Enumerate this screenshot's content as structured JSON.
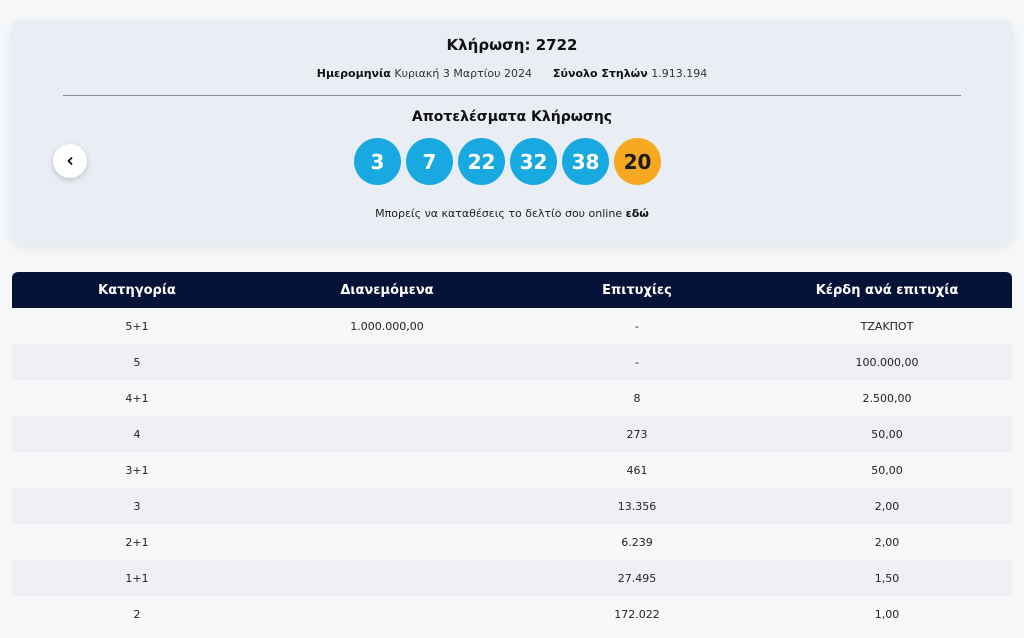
{
  "draw": {
    "title": "Κλήρωση: 2722",
    "date_label": "Ημερομηνία",
    "date_value": "Κυριακή 3 Μαρτίου 2024",
    "columns_label": "Σύνολο Στηλών",
    "columns_value": "1.913.194",
    "results_title": "Αποτελέσματα Κλήρωσης",
    "numbers": [
      "3",
      "7",
      "22",
      "32",
      "38"
    ],
    "bonus": "20",
    "online_text": "Μπορείς να καταθέσεις το δελτίο σου online",
    "online_link": "εδώ",
    "colors": {
      "ball": "#19a9e1",
      "bonus": "#f6a821"
    },
    "prev_icon": "chevron-left-icon"
  },
  "table": {
    "headers": [
      "Κατηγορία",
      "Διανεμόμενα",
      "Επιτυχίες",
      "Κέρδη ανά επιτυχία"
    ],
    "rows": [
      [
        "5+1",
        "1.000.000,00",
        "-",
        "ΤΖΑΚΠΟΤ"
      ],
      [
        "5",
        "",
        "-",
        "100.000,00"
      ],
      [
        "4+1",
        "",
        "8",
        "2.500,00"
      ],
      [
        "4",
        "",
        "273",
        "50,00"
      ],
      [
        "3+1",
        "",
        "461",
        "50,00"
      ],
      [
        "3",
        "",
        "13.356",
        "2,00"
      ],
      [
        "2+1",
        "",
        "6.239",
        "2,00"
      ],
      [
        "1+1",
        "",
        "27.495",
        "1,50"
      ],
      [
        "2",
        "",
        "172.022",
        "1,00"
      ]
    ],
    "header_color": "#061338"
  }
}
